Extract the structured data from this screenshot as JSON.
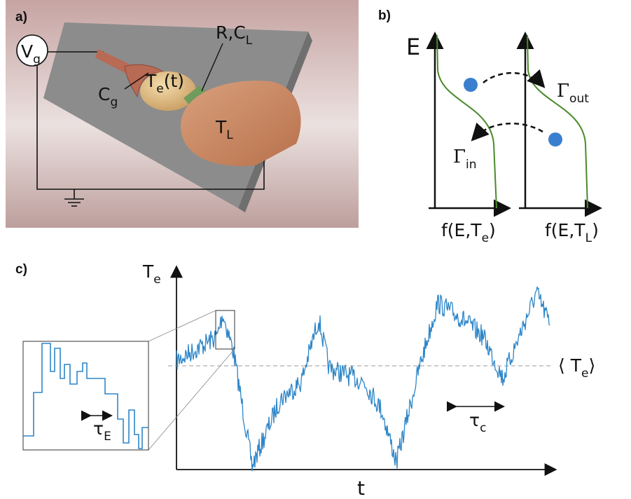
{
  "panel_a": {
    "label": "a)",
    "gate_voltage": {
      "text": "V",
      "sub": "g"
    },
    "gate_capacitance": {
      "text": "C",
      "sub": "g"
    },
    "island_temperature": {
      "text": "T",
      "sub": "e",
      "suffix": "(t)"
    },
    "junction": {
      "text": "R,C",
      "sub": "L"
    },
    "lead_temperature": {
      "text": "T",
      "sub": "L"
    }
  },
  "panel_b": {
    "label": "b)",
    "energy_axis": "E",
    "rate_out": {
      "text": "Γ",
      "sub": "out"
    },
    "rate_in": {
      "text": "Γ",
      "sub": "in"
    },
    "island_distribution": {
      "text": "f(E,T",
      "sub": "e",
      "suffix": ")"
    },
    "lead_distribution": {
      "text": "f(E,T",
      "sub": "L",
      "suffix": ")"
    }
  },
  "panel_c": {
    "label": "c)",
    "y_axis": {
      "text": "T",
      "sub": "e"
    },
    "x_axis": "t",
    "mean": {
      "text": "⟨ T",
      "sub": "e",
      "suffix": "⟩"
    },
    "correlation_time": {
      "text": "τ",
      "sub": "c"
    },
    "energy_time": {
      "text": "τ",
      "sub": "E"
    }
  }
}
